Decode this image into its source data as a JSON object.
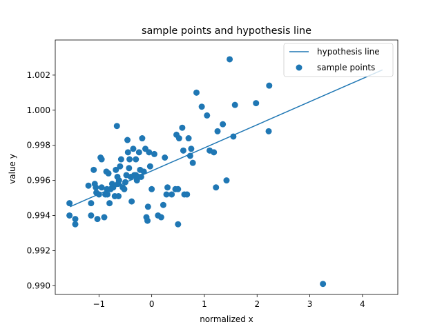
{
  "chart_data": {
    "type": "scatter",
    "title": "sample points and hypothesis line",
    "xlabel": "normalized x",
    "ylabel": "value y",
    "xlim": [
      -1.83,
      4.67
    ],
    "ylim": [
      0.9895,
      1.004
    ],
    "xticks": [
      -1,
      0,
      1,
      2,
      3,
      4
    ],
    "xtick_labels": [
      "−1",
      "0",
      "1",
      "2",
      "3",
      "4"
    ],
    "yticks": [
      0.99,
      0.992,
      0.994,
      0.996,
      0.998,
      1.0,
      1.002
    ],
    "ytick_labels": [
      "0.990",
      "0.992",
      "0.994",
      "0.996",
      "0.998",
      "1.000",
      "1.002"
    ],
    "grid": false,
    "legend": {
      "placement": "top-right",
      "entries": [
        "hypothesis line",
        "sample points"
      ]
    },
    "color": "#1f77b4",
    "series": [
      {
        "name": "hypothesis line",
        "kind": "line",
        "x": [
          -1.55,
          4.38
        ],
        "y": [
          0.9945,
          1.0023
        ]
      },
      {
        "name": "sample points",
        "kind": "scatter",
        "x": [
          -1.56,
          -1.56,
          -1.45,
          -1.45,
          -1.2,
          -1.15,
          -1.15,
          -1.1,
          -1.08,
          -1.06,
          -1.05,
          -1.03,
          -1.0,
          -0.97,
          -0.95,
          -0.95,
          -0.9,
          -0.88,
          -0.86,
          -0.85,
          -0.84,
          -0.82,
          -0.8,
          -0.78,
          -0.75,
          -0.73,
          -0.7,
          -0.68,
          -0.66,
          -0.65,
          -0.64,
          -0.63,
          -0.62,
          -0.6,
          -0.58,
          -0.55,
          -0.52,
          -0.5,
          -0.48,
          -0.46,
          -0.45,
          -0.43,
          -0.42,
          -0.4,
          -0.38,
          -0.35,
          -0.33,
          -0.3,
          -0.3,
          -0.28,
          -0.25,
          -0.24,
          -0.22,
          -0.2,
          -0.18,
          -0.15,
          -0.12,
          -0.1,
          -0.08,
          -0.05,
          -0.03,
          0.0,
          0.05,
          0.12,
          0.18,
          0.22,
          0.25,
          0.28,
          0.3,
          0.38,
          0.45,
          0.47,
          0.5,
          0.5,
          0.52,
          0.58,
          0.6,
          0.62,
          0.67,
          0.7,
          0.73,
          0.75,
          0.78,
          0.85,
          0.95,
          1.05,
          1.1,
          1.18,
          1.22,
          1.25,
          1.35,
          1.42,
          1.48,
          1.55,
          1.58,
          1.98,
          2.22,
          2.23,
          3.25,
          -0.07
        ],
        "y": [
          0.9947,
          0.994,
          0.9938,
          0.9935,
          0.9957,
          0.994,
          0.9947,
          0.9966,
          0.9958,
          0.9956,
          0.9953,
          0.9938,
          0.9952,
          0.9973,
          0.9972,
          0.9956,
          0.9939,
          0.9952,
          0.9965,
          0.9955,
          0.9952,
          0.9964,
          0.9947,
          0.9955,
          0.9958,
          0.9956,
          0.9951,
          0.9966,
          0.9991,
          0.9962,
          0.9958,
          0.9951,
          0.996,
          0.9968,
          0.9972,
          0.9956,
          0.9955,
          0.9959,
          0.9963,
          0.9983,
          0.9976,
          0.9967,
          0.9972,
          0.9962,
          0.9948,
          0.9978,
          0.9963,
          0.9963,
          0.9972,
          0.996,
          0.9962,
          0.9976,
          0.9966,
          0.9962,
          0.9984,
          0.9965,
          0.9978,
          0.9939,
          0.9937,
          0.9976,
          0.9968,
          0.9955,
          0.9975,
          0.994,
          0.9939,
          0.9946,
          0.9973,
          0.9952,
          0.9956,
          0.9952,
          0.9955,
          0.9986,
          0.9935,
          0.9955,
          0.9984,
          0.999,
          0.9977,
          0.9952,
          0.9952,
          0.9984,
          0.9974,
          0.9978,
          0.997,
          1.001,
          1.0002,
          0.9997,
          0.9977,
          0.9976,
          0.9956,
          0.9988,
          0.9992,
          0.996,
          1.0029,
          0.9985,
          1.0003,
          1.0004,
          0.9988,
          1.0014,
          0.9901,
          0.9945
        ]
      }
    ]
  }
}
